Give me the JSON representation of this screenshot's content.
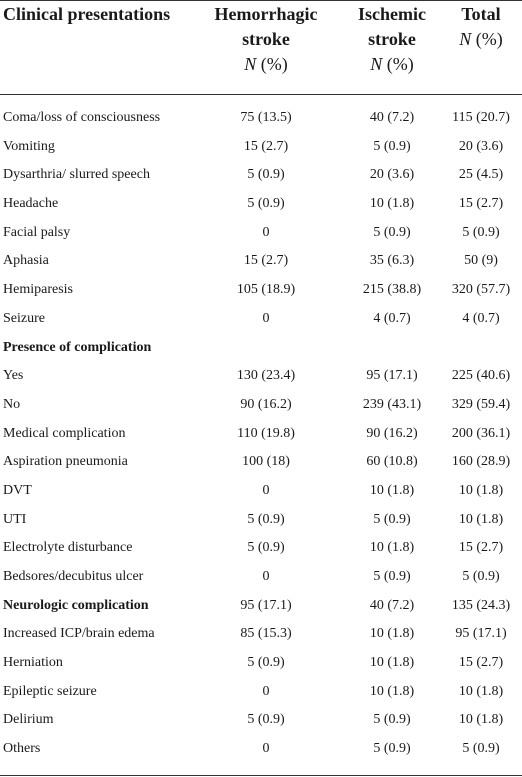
{
  "header": {
    "col0": [
      "Clinical presentations"
    ],
    "col1": [
      "Hemorrhagic",
      "stroke"
    ],
    "col2": [
      "Ischemic",
      "stroke"
    ],
    "col3": [
      "Total"
    ],
    "stat_n": "N",
    "stat_pct": " (%)"
  },
  "rows": [
    {
      "label": "Coma/loss of consciousness",
      "hem": "75 (13.5)",
      "isc": "40 (7.2)",
      "total": "115 (20.7)",
      "bold": false
    },
    {
      "label": "Vomiting",
      "hem": "15 (2.7)",
      "isc": "5 (0.9)",
      "total": "20 (3.6)",
      "bold": false
    },
    {
      "label": "Dysarthria/ slurred speech",
      "hem": "5 (0.9)",
      "isc": "20 (3.6)",
      "total": "25 (4.5)",
      "bold": false
    },
    {
      "label": "Headache",
      "hem": "5 (0.9)",
      "isc": "10 (1.8)",
      "total": "15 (2.7)",
      "bold": false
    },
    {
      "label": "Facial palsy",
      "hem": "0",
      "isc": "5 (0.9)",
      "total": "5 (0.9)",
      "bold": false
    },
    {
      "label": "Aphasia",
      "hem": "15 (2.7)",
      "isc": "35 (6.3)",
      "total": "50 (9)",
      "bold": false
    },
    {
      "label": "Hemiparesis",
      "hem": "105 (18.9)",
      "isc": "215 (38.8)",
      "total": "320 (57.7)",
      "bold": false
    },
    {
      "label": "Seizure",
      "hem": "0",
      "isc": "4 (0.7)",
      "total": "4 (0.7)",
      "bold": false
    },
    {
      "label": "Presence of complication",
      "hem": "",
      "isc": "",
      "total": "",
      "bold": true
    },
    {
      "label": "Yes",
      "hem": "130 (23.4)",
      "isc": "95 (17.1)",
      "total": "225 (40.6)",
      "bold": false
    },
    {
      "label": "No",
      "hem": "90 (16.2)",
      "isc": "239 (43.1)",
      "total": "329 (59.4)",
      "bold": false
    },
    {
      "label": "Medical complication",
      "hem": "110 (19.8)",
      "isc": "90 (16.2)",
      "total": "200 (36.1)",
      "bold": false
    },
    {
      "label": "Aspiration pneumonia",
      "hem": "100 (18)",
      "isc": "60 (10.8)",
      "total": "160 (28.9)",
      "bold": false
    },
    {
      "label": "DVT",
      "hem": "0",
      "isc": "10 (1.8)",
      "total": "10 (1.8)",
      "bold": false
    },
    {
      "label": "UTI",
      "hem": "5 (0.9)",
      "isc": "5 (0.9)",
      "total": "10 (1.8)",
      "bold": false
    },
    {
      "label": "Electrolyte disturbance",
      "hem": "5 (0.9)",
      "isc": "10 (1.8)",
      "total": "15 (2.7)",
      "bold": false
    },
    {
      "label": "Bedsores/decubitus ulcer",
      "hem": "0",
      "isc": "5 (0.9)",
      "total": "5 (0.9)",
      "bold": false
    },
    {
      "label": "Neurologic complication",
      "hem": "95 (17.1)",
      "isc": "40 (7.2)",
      "total": "135 (24.3)",
      "bold": true
    },
    {
      "label": "Increased ICP/brain edema",
      "hem": "85 (15.3)",
      "isc": "10 (1.8)",
      "total": "95 (17.1)",
      "bold": false
    },
    {
      "label": "Herniation",
      "hem": "5 (0.9)",
      "isc": "10 (1.8)",
      "total": "15 (2.7)",
      "bold": false
    },
    {
      "label": "Epileptic seizure",
      "hem": "0",
      "isc": "10 (1.8)",
      "total": "10 (1.8)",
      "bold": false
    },
    {
      "label": "Delirium",
      "hem": "5 (0.9)",
      "isc": "5 (0.9)",
      "total": "10 (1.8)",
      "bold": false
    },
    {
      "label": "Others",
      "hem": "0",
      "isc": "5 (0.9)",
      "total": "5 (0.9)",
      "bold": false
    }
  ]
}
